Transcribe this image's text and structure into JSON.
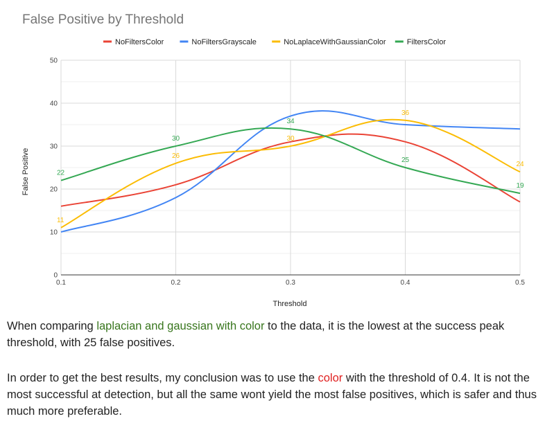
{
  "chart_data": {
    "type": "line",
    "title": "False Positive by Threshold",
    "xlabel": "Threshold",
    "ylabel": "False Positive",
    "x": [
      0.1,
      0.2,
      0.3,
      0.4,
      0.5
    ],
    "x_tick_labels": [
      "0.1",
      "0.2",
      "0.3",
      "0.4",
      "0.5"
    ],
    "ylim": [
      0,
      50
    ],
    "y_ticks": [
      0,
      10,
      20,
      30,
      40,
      50
    ],
    "y_tick_labels": [
      "0",
      "10",
      "20",
      "30",
      "40",
      "50"
    ],
    "grid": true,
    "legend_position": "top",
    "series": [
      {
        "name": "NoFiltersColor",
        "color": "#ea4335",
        "values": [
          16,
          21,
          31,
          31,
          17
        ],
        "data_labels": []
      },
      {
        "name": "NoFiltersGrayscale",
        "color": "#4285f4",
        "values": [
          10,
          18,
          37,
          35,
          34
        ],
        "data_labels": []
      },
      {
        "name": "NoLaplaceWithGaussianColor",
        "color": "#fbbc04",
        "values": [
          11,
          26,
          30,
          36,
          24
        ],
        "data_labels": [
          "11",
          "26",
          "30",
          "36",
          "24"
        ]
      },
      {
        "name": "FiltersColor",
        "color": "#34a853",
        "values": [
          22,
          30,
          34,
          25,
          19
        ],
        "data_labels": [
          "22",
          "30",
          "34",
          "25",
          "19"
        ]
      }
    ]
  },
  "text": {
    "para1_a": "When comparing ",
    "para1_highlight": "laplacian and gaussian with color",
    "para1_b": " to the data, it is the lowest at the success peak threshold, with 25 false positives.",
    "para2_a": "In order to get the best results, my conclusion was to use the ",
    "para2_highlight": "color",
    "para2_b": " with the threshold of 0.4. It is not the most successful at detection, but all the same wont yield the most false positives, which is safer and thus much more preferable."
  },
  "colors": {
    "highlight_green": "#38761d",
    "highlight_red": "#e02020"
  }
}
